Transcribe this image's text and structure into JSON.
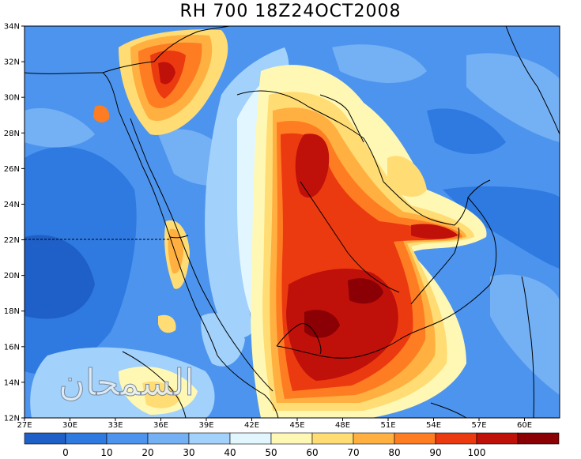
{
  "title": "RH 700 18Z24OCT2008",
  "map": {
    "lat_labels": [
      "34N",
      "32N",
      "30N",
      "28N",
      "26N",
      "24N",
      "22N",
      "20N",
      "18N",
      "16N",
      "14N",
      "12N"
    ],
    "lon_labels": [
      "27E",
      "30E",
      "33E",
      "36E",
      "39E",
      "42E",
      "45E",
      "48E",
      "51E",
      "54E",
      "57E",
      "60E"
    ]
  },
  "watermark": "السمحان",
  "colorbar": {
    "colors": [
      "#1f5fc8",
      "#2f7ae0",
      "#4d94ee",
      "#74b0f4",
      "#a2d1fb",
      "#e2f6ff",
      "#fff8b4",
      "#ffdc74",
      "#ffb040",
      "#ff7d22",
      "#ec3a10",
      "#c0100a",
      "#8a0005"
    ],
    "labels": [
      "0",
      "10",
      "20",
      "30",
      "40",
      "50",
      "60",
      "70",
      "80",
      "90",
      "100"
    ]
  }
}
